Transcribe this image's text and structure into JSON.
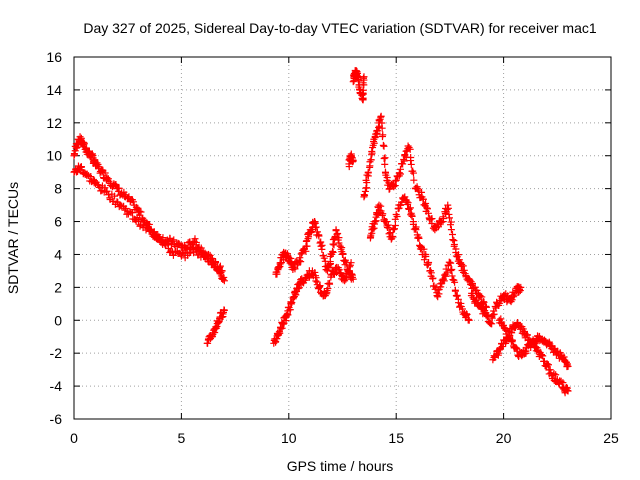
{
  "chart_data": {
    "type": "scatter",
    "title": "Day 327 of 2025, Sidereal Day-to-day VTEC variation (SDTVAR) for receiver mac1",
    "xlabel": "GPS time / hours",
    "ylabel": "SDTVAR / TECUs",
    "xlim": [
      0,
      25
    ],
    "ylim": [
      -6,
      16
    ],
    "x_ticks": [
      0,
      5,
      10,
      15,
      20,
      25
    ],
    "y_ticks": [
      -6,
      -4,
      -2,
      0,
      2,
      4,
      6,
      8,
      10,
      12,
      14,
      16
    ],
    "x_tick_labels": [
      "0",
      "5",
      "10",
      "15",
      "20",
      "25"
    ],
    "y_tick_labels": [
      "-6",
      "-4",
      "-2",
      "0",
      "2",
      "4",
      "6",
      "8",
      "10",
      "12",
      "14",
      "16"
    ],
    "grid": true,
    "marker": "+",
    "marker_color": "#ff0000",
    "series": [
      {
        "name": "SDTVAR",
        "segments": [
          {
            "x": [
              0.0,
              0.2,
              0.4,
              0.6,
              0.8,
              1.0,
              1.3,
              1.6,
              2.0,
              2.4,
              2.8,
              3.2,
              3.6,
              4.0,
              4.4,
              4.8,
              5.2,
              5.6,
              6.0,
              6.4,
              6.8,
              7.0
            ],
            "y": [
              10.0,
              11.0,
              10.8,
              10.3,
              10.0,
              9.5,
              9.0,
              8.6,
              8.0,
              7.5,
              7.0,
              6.2,
              5.5,
              5.0,
              4.8,
              4.6,
              4.4,
              4.8,
              4.2,
              3.6,
              3.0,
              2.4
            ]
          },
          {
            "x": [
              0.0,
              0.3,
              0.6,
              1.0,
              1.5,
              2.0,
              2.5,
              3.0,
              3.5,
              4.0,
              4.5,
              5.0,
              5.5,
              6.0,
              6.5,
              6.9
            ],
            "y": [
              9.0,
              9.3,
              8.8,
              8.3,
              7.8,
              7.2,
              6.6,
              6.0,
              5.4,
              5.0,
              4.2,
              3.9,
              4.3,
              4.0,
              3.5,
              3.0
            ]
          },
          {
            "x": [
              6.2,
              6.4,
              6.6,
              6.8,
              7.0
            ],
            "y": [
              -1.4,
              -1.0,
              -0.4,
              0.2,
              0.6
            ]
          },
          {
            "x": [
              9.4,
              9.6,
              9.8,
              10.0,
              10.2,
              10.5,
              10.8,
              11.0,
              11.2,
              11.5,
              11.8,
              12.0,
              12.2,
              12.5,
              12.8,
              13.0
            ],
            "y": [
              2.8,
              3.5,
              4.0,
              3.8,
              3.2,
              3.6,
              4.5,
              5.5,
              6.0,
              4.5,
              3.0,
              4.0,
              5.5,
              4.0,
              3.0,
              2.5
            ]
          },
          {
            "x": [
              9.3,
              9.5,
              9.7,
              9.9,
              10.1,
              10.3,
              10.5,
              10.8,
              11.1,
              11.4,
              11.7,
              12.0,
              12.3,
              12.6,
              12.9
            ],
            "y": [
              -1.4,
              -0.8,
              -0.2,
              0.3,
              1.0,
              1.6,
              2.2,
              2.6,
              3.0,
              2.0,
              1.5,
              2.8,
              3.2,
              2.4,
              3.5
            ]
          },
          {
            "x": [
              13.0,
              13.1,
              13.2,
              13.3,
              13.45,
              13.5
            ],
            "y": [
              14.5,
              15.1,
              15.0,
              14.0,
              13.4,
              14.8
            ]
          },
          {
            "x": [
              12.8,
              12.9,
              13.0
            ],
            "y": [
              9.5,
              10.0,
              9.7
            ]
          },
          {
            "x": [
              13.5,
              13.7,
              13.9,
              14.1,
              14.3,
              14.5,
              14.7,
              15.0,
              15.3,
              15.6,
              15.9,
              16.2,
              16.5,
              16.8,
              17.1,
              17.4,
              17.7,
              18.0,
              18.3,
              18.6,
              18.9,
              19.2
            ],
            "y": [
              7.5,
              9.0,
              10.5,
              11.5,
              12.4,
              9.0,
              8.0,
              8.5,
              9.5,
              10.5,
              8.0,
              7.5,
              6.5,
              5.5,
              6.0,
              7.0,
              4.5,
              3.5,
              2.5,
              2.0,
              1.5,
              0.8
            ]
          },
          {
            "x": [
              13.8,
              14.0,
              14.2,
              14.5,
              14.8,
              15.1,
              15.4,
              15.7,
              16.0,
              16.3,
              16.6,
              16.9,
              17.2,
              17.5,
              17.8,
              18.1,
              18.4
            ],
            "y": [
              5.0,
              6.0,
              7.0,
              6.0,
              5.0,
              6.8,
              7.5,
              6.5,
              5.0,
              4.0,
              3.0,
              1.5,
              2.5,
              3.5,
              1.5,
              0.5,
              0.0
            ]
          },
          {
            "x": [
              18.5,
              18.8,
              19.1,
              19.4,
              19.7,
              20.0,
              20.3,
              20.6,
              20.8
            ],
            "y": [
              1.5,
              1.0,
              0.5,
              -0.2,
              1.0,
              1.5,
              1.2,
              1.8,
              2.0
            ]
          },
          {
            "x": [
              19.5,
              19.8,
              20.1,
              20.4,
              20.7,
              21.0,
              21.3,
              21.6,
              21.9,
              22.2,
              22.5,
              22.8,
              23.0
            ],
            "y": [
              -2.4,
              -1.8,
              -1.2,
              -0.5,
              -0.3,
              -0.8,
              -1.4,
              -1.9,
              -2.5,
              -3.2,
              -3.6,
              -4.1,
              -4.3
            ]
          },
          {
            "x": [
              19.8,
              20.1,
              20.4,
              20.7,
              21.0,
              21.3,
              21.6,
              21.9,
              22.2,
              22.5,
              22.8,
              23.0
            ],
            "y": [
              0.0,
              -0.6,
              -1.3,
              -2.2,
              -1.9,
              -1.4,
              -1.0,
              -1.2,
              -1.6,
              -2.0,
              -2.4,
              -2.8
            ]
          }
        ]
      }
    ]
  }
}
